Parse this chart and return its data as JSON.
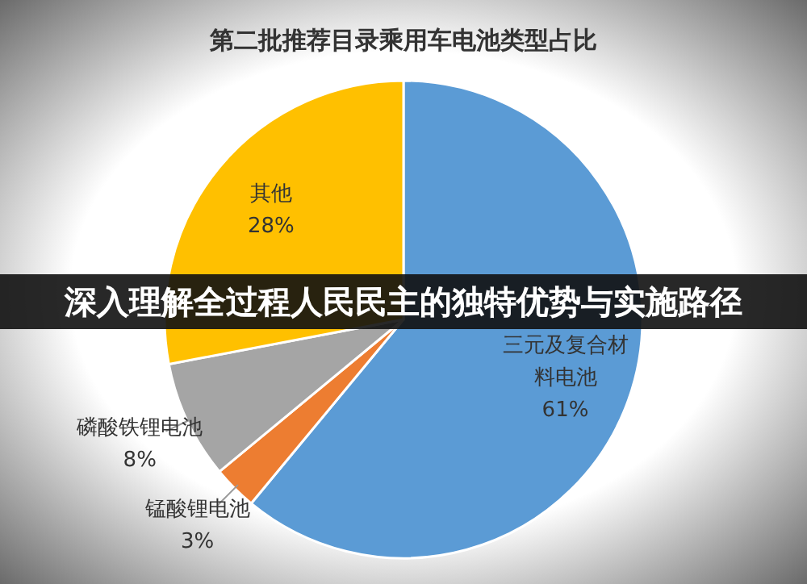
{
  "chart_data": {
    "type": "pie",
    "title": "第二批推荐目录乘用车电池类型占比",
    "categories": [
      "三元及复合材料电池",
      "锰酸锂电池",
      "磷酸铁锂电池",
      "其他"
    ],
    "values": [
      61,
      3,
      8,
      28
    ],
    "value_labels": [
      "61%",
      "3%",
      "8%",
      "28%"
    ],
    "colors": [
      "#5b9bd5",
      "#ed7d31",
      "#a5a5a5",
      "#ffc000"
    ],
    "annotations": [
      "深入理解全过程人民民主的独特优势与实施路径"
    ]
  }
}
